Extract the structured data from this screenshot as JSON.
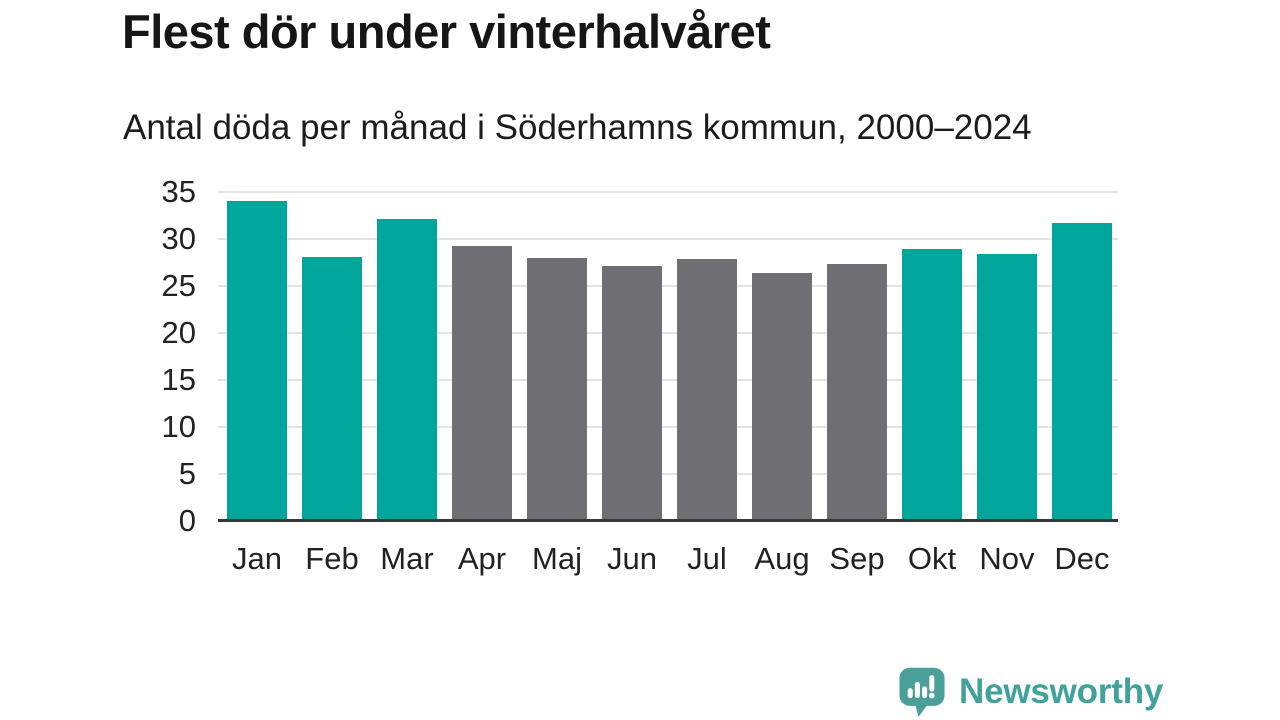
{
  "header": {
    "title": "Flest dör under vinterhalvåret",
    "subtitle": "Antal döda per månad i Söderhamns kommun, 2000–2024"
  },
  "chart_data": {
    "type": "bar",
    "title": "Flest dör under vinterhalvåret",
    "subtitle": "Antal döda per månad i Söderhamns kommun, 2000–2024",
    "categories": [
      "Jan",
      "Feb",
      "Mar",
      "Apr",
      "Maj",
      "Jun",
      "Jul",
      "Aug",
      "Sep",
      "Okt",
      "Nov",
      "Dec"
    ],
    "values": [
      34.0,
      28.1,
      32.1,
      29.3,
      28.0,
      27.1,
      27.9,
      26.4,
      27.3,
      28.9,
      28.4,
      31.7
    ],
    "bar_colors": [
      "#00a59b",
      "#00a59b",
      "#00a59b",
      "#6e6e73",
      "#6e6e73",
      "#6e6e73",
      "#6e6e73",
      "#6e6e73",
      "#6e6e73",
      "#00a59b",
      "#00a59b",
      "#00a59b"
    ],
    "highlight_color": "#00a59b",
    "muted_color": "#6e6e73",
    "xlabel": "",
    "ylabel": "",
    "ylim": [
      0,
      35
    ],
    "y_ticks": [
      0,
      5,
      10,
      15,
      20,
      25,
      30,
      35
    ],
    "grid": "horizontal",
    "grid_color": "#e3e3e3",
    "axis_color": "#383838",
    "legend": "none"
  },
  "branding": {
    "name": "Newsworthy",
    "text_color": "#3fa29b",
    "logo_color": "#4a9f99",
    "logo_icon": "speech-bubble-bar-chart-icon"
  }
}
